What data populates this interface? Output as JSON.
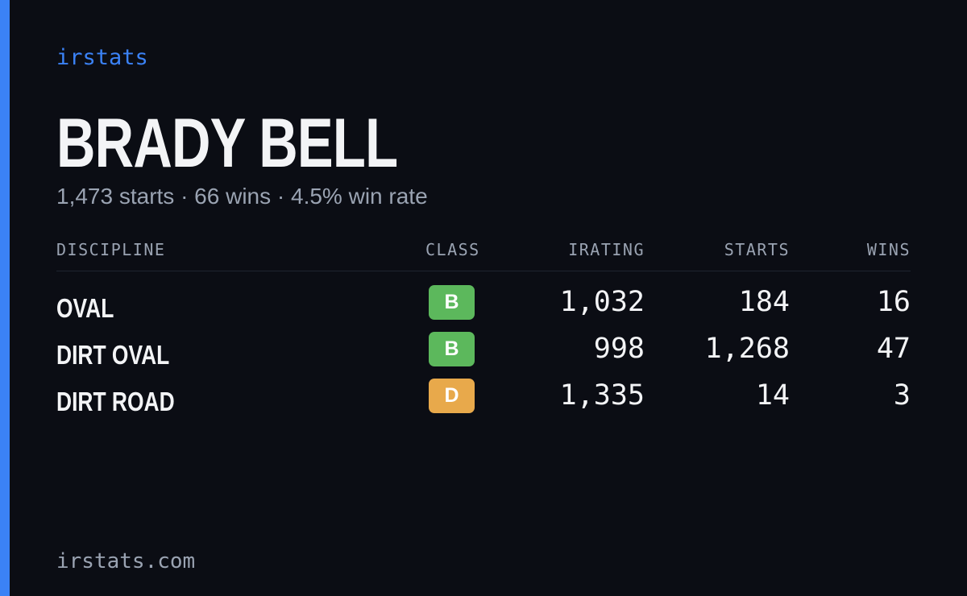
{
  "brand": "irstats",
  "driver": {
    "name": "BRADY BELL",
    "summary": "1,473 starts · 66 wins · 4.5% win rate"
  },
  "table": {
    "headers": [
      "DISCIPLINE",
      "CLASS",
      "IRATING",
      "STARTS",
      "WINS"
    ],
    "rows": [
      {
        "discipline": "OVAL",
        "class": "B",
        "class_color": "#5cb85c",
        "irating": "1,032",
        "starts": "184",
        "wins": "16"
      },
      {
        "discipline": "DIRT OVAL",
        "class": "B",
        "class_color": "#5cb85c",
        "irating": "998",
        "starts": "1,268",
        "wins": "47"
      },
      {
        "discipline": "DIRT ROAD",
        "class": "D",
        "class_color": "#e8a94b",
        "irating": "1,335",
        "starts": "14",
        "wins": "3"
      }
    ]
  },
  "footer": "irstats.com"
}
